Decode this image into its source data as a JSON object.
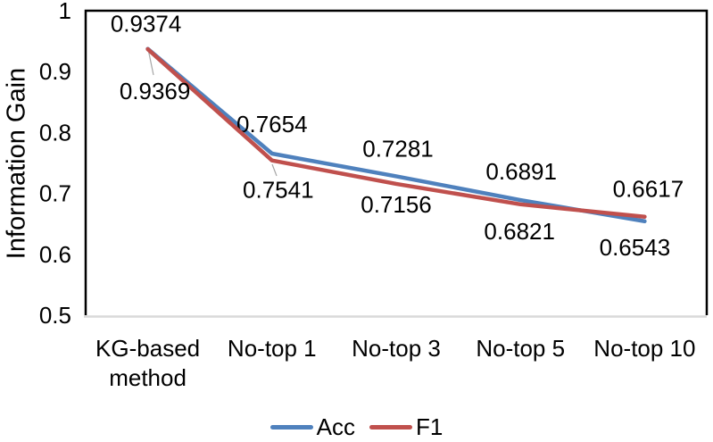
{
  "chart_data": {
    "type": "line",
    "title": "",
    "xlabel": "",
    "ylabel": "Information Gain",
    "ylim": [
      0.5,
      1.0
    ],
    "yticks": [
      1,
      0.9,
      0.8,
      0.7,
      0.6,
      0.5
    ],
    "ytick_labels": [
      "1",
      "0.9",
      "0.8",
      "0.7",
      "0.6",
      "0.5"
    ],
    "categories": [
      "KG-based method",
      "No-top 1",
      "No-top 3",
      "No-top 5",
      "No-top 10"
    ],
    "category_display_lines": [
      [
        "KG-based",
        "method"
      ],
      [
        "No-top 1"
      ],
      [
        "No-top 3"
      ],
      [
        "No-top 5"
      ],
      [
        "No-top 10"
      ]
    ],
    "series": [
      {
        "name": "Acc",
        "color": "#4F81BD",
        "values": [
          0.9374,
          0.7654,
          0.7281,
          0.6891,
          0.6543
        ]
      },
      {
        "name": "F1",
        "color": "#C0504D",
        "values": [
          0.9369,
          0.7541,
          0.7156,
          0.6821,
          0.6617
        ]
      }
    ],
    "data_labels_visible": true,
    "grid": false,
    "legend_position": "bottom",
    "background": "#FFFFFF",
    "text_color": "#000000",
    "axis_colors": {
      "box": "#000000",
      "baseline": "#D9D9D9",
      "leader": "#A6A6A6"
    }
  }
}
